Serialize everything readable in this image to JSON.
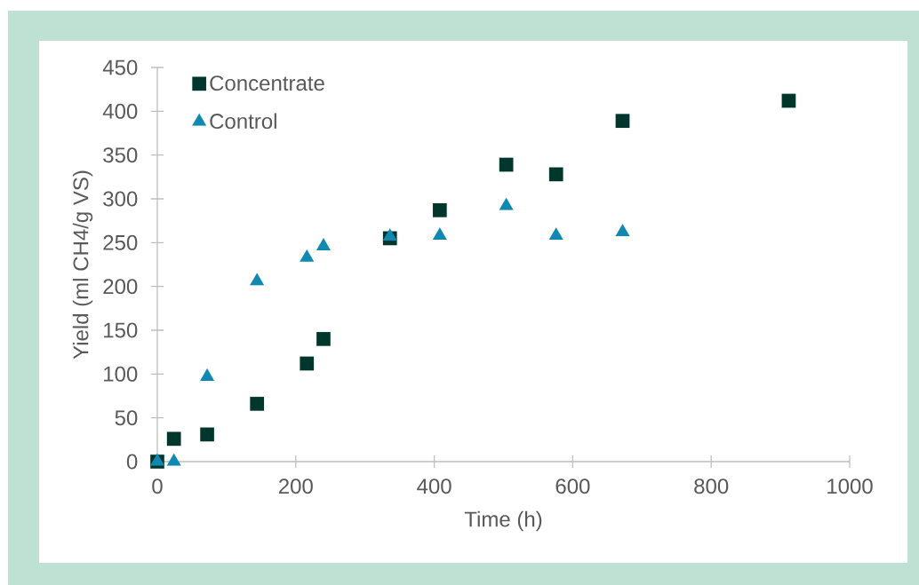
{
  "chart_data": {
    "type": "scatter",
    "xlabel": "Time (h)",
    "ylabel": "Yield (ml CH4/g VS)",
    "xlim": [
      0,
      1000
    ],
    "ylim": [
      0,
      450
    ],
    "xticks": [
      0,
      200,
      400,
      600,
      800,
      1000
    ],
    "yticks": [
      0,
      50,
      100,
      150,
      200,
      250,
      300,
      350,
      400,
      450
    ],
    "legend": "top left",
    "series": [
      {
        "name": "Concentrate",
        "color": "#00362b",
        "marker": "square",
        "x": [
          0,
          24,
          72,
          144,
          216,
          240,
          336,
          408,
          504,
          576,
          672,
          912
        ],
        "values": [
          0,
          26,
          31,
          66,
          112,
          140,
          255,
          287,
          339,
          328,
          389,
          412
        ]
      },
      {
        "name": "Control",
        "color": "#1088b0",
        "marker": "triangle",
        "x": [
          0,
          24,
          72,
          144,
          216,
          240,
          336,
          408,
          504,
          576,
          672
        ],
        "values": [
          0,
          0,
          97,
          206,
          233,
          246,
          257,
          258,
          292,
          258,
          262
        ]
      }
    ]
  }
}
